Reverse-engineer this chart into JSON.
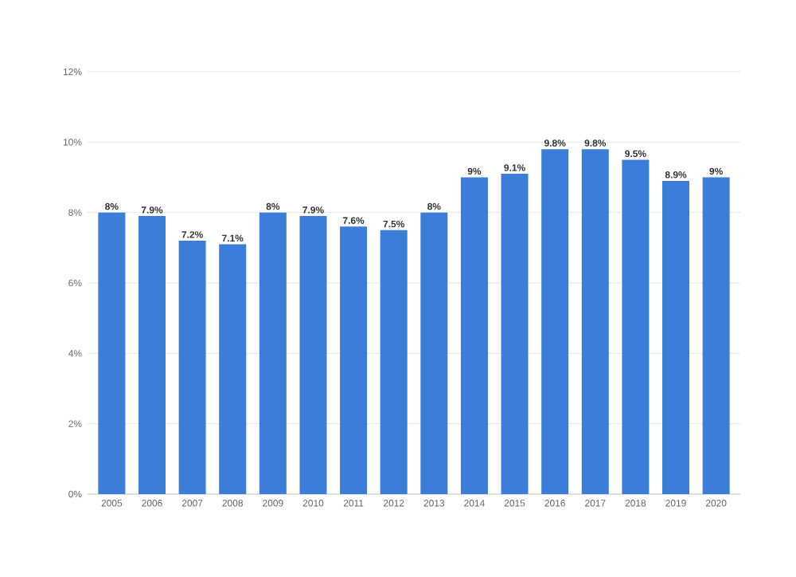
{
  "chart_data": {
    "type": "bar",
    "categories": [
      "2005",
      "2006",
      "2007",
      "2008",
      "2009",
      "2010",
      "2011",
      "2012",
      "2013",
      "2014",
      "2015",
      "2016",
      "2017",
      "2018",
      "2019",
      "2020"
    ],
    "values": [
      8,
      7.9,
      7.2,
      7.1,
      8,
      7.9,
      7.6,
      7.5,
      8,
      9,
      9.1,
      9.8,
      9.8,
      9.5,
      8.9,
      9
    ],
    "value_labels": [
      "8%",
      "7.9%",
      "7.2%",
      "7.1%",
      "8%",
      "7.9%",
      "7.6%",
      "7.5%",
      "8%",
      "9%",
      "9.1%",
      "9.8%",
      "9.8%",
      "9.5%",
      "8.9%",
      "9%"
    ],
    "color": "#3b7dd8",
    "ylim": [
      0,
      12
    ],
    "yticks": [
      {
        "value": 0,
        "label": "0%"
      },
      {
        "value": 2,
        "label": "2%"
      },
      {
        "value": 4,
        "label": "4%"
      },
      {
        "value": 6,
        "label": "6%"
      },
      {
        "value": 8,
        "label": "8%"
      },
      {
        "value": 10,
        "label": "10%"
      },
      {
        "value": 12,
        "label": "12%"
      }
    ],
    "grid": "y"
  }
}
